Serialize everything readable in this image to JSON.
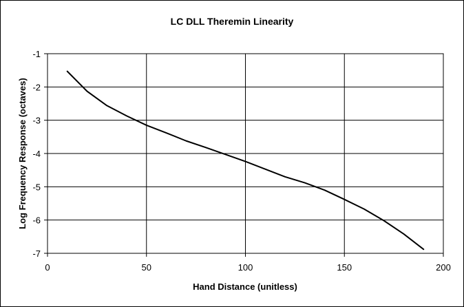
{
  "chart_data": {
    "type": "line",
    "title": "LC DLL Theremin Linearity",
    "xlabel": "Hand Distance (unitless)",
    "ylabel": "Log Frequency Response (octaves)",
    "xlim": [
      0,
      200
    ],
    "ylim": [
      -7,
      -1
    ],
    "xticks": [
      0,
      50,
      100,
      150,
      200
    ],
    "yticks": [
      -1,
      -2,
      -3,
      -4,
      -5,
      -6,
      -7
    ],
    "grid": true,
    "legend": "none",
    "line_color": "#000000",
    "series": [
      {
        "x": [
          10,
          20,
          30,
          40,
          50,
          60,
          70,
          80,
          90,
          100,
          110,
          120,
          130,
          140,
          150,
          160,
          170,
          180,
          190
        ],
        "y": [
          -1.53,
          -2.13,
          -2.56,
          -2.87,
          -3.15,
          -3.38,
          -3.62,
          -3.82,
          -4.03,
          -4.24,
          -4.47,
          -4.7,
          -4.88,
          -5.1,
          -5.38,
          -5.67,
          -6.02,
          -6.42,
          -6.88
        ]
      }
    ]
  }
}
